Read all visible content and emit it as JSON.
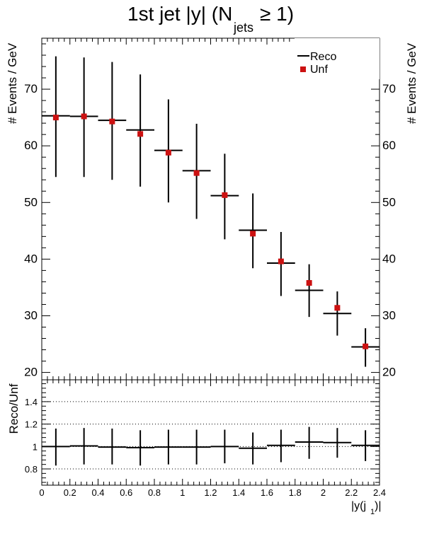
{
  "title": {
    "main": "1st jet |y| (N",
    "sub": "jets",
    "tail": " ≥ 1)"
  },
  "axis_labels": {
    "ylabel_left": "# Events / GeV",
    "ylabel_right": "# Events / GeV",
    "ratio_ylabel": "Reco/Unf",
    "xlabel_main": "|y(j",
    "xlabel_sub": "1",
    "xlabel_tail": ")|"
  },
  "legend": {
    "reco_label": "Reco",
    "unf_label": "Unf"
  },
  "colors": {
    "unf_marker": "#cc1111",
    "line": "#000000"
  },
  "chart_data": [
    {
      "type": "scatter",
      "panel": "main",
      "xlim": [
        0,
        2.4
      ],
      "ylim": [
        18.7,
        79
      ],
      "yticks": [
        20,
        30,
        40,
        50,
        60,
        70
      ],
      "ytick_labels": [
        "20",
        "30",
        "40",
        "50",
        "60",
        "70"
      ],
      "bin_edges": [
        0,
        0.2,
        0.4,
        0.6,
        0.8,
        1.0,
        1.2,
        1.4,
        1.6,
        1.8,
        2.0,
        2.2,
        2.4
      ],
      "series": [
        {
          "name": "Reco",
          "style": "horizontal bin line",
          "values": [
            65.3,
            65.2,
            64.5,
            62.8,
            59.2,
            55.6,
            51.2,
            45.1,
            39.3,
            34.5,
            30.4,
            24.5
          ]
        },
        {
          "name": "Unf",
          "style": "square marker with error bar",
          "values": [
            65.0,
            65.2,
            64.3,
            62.1,
            58.8,
            55.2,
            51.3,
            44.5,
            39.6,
            35.8,
            31.4,
            24.6
          ],
          "err_low": [
            54.5,
            54.5,
            54.0,
            52.8,
            50.0,
            47.1,
            43.5,
            38.4,
            33.5,
            29.8,
            26.5,
            21.0
          ],
          "err_high": [
            75.8,
            75.6,
            74.8,
            72.6,
            68.2,
            63.9,
            58.6,
            51.6,
            44.8,
            39.1,
            34.3,
            27.8
          ]
        }
      ]
    },
    {
      "type": "scatter",
      "panel": "ratio",
      "xlim": [
        0,
        2.4
      ],
      "ylim": [
        0.655,
        1.595
      ],
      "yticks": [
        0.8,
        1.0,
        1.2,
        1.4
      ],
      "ytick_labels": [
        "0.8",
        "1",
        "1.2",
        "1.4"
      ],
      "gridlines_y": [
        0.8,
        1.0,
        1.2,
        1.4
      ],
      "xticks": [
        0,
        0.2,
        0.4,
        0.6,
        0.8,
        1.0,
        1.2,
        1.4,
        1.6,
        1.8,
        2.0,
        2.2,
        2.4
      ],
      "xtick_labels": [
        "0",
        "0.2",
        "0.4",
        "0.6",
        "0.8",
        "1",
        "1.2",
        "1.4",
        "1.6",
        "1.8",
        "2",
        "2.2",
        "2.4"
      ],
      "bin_edges": [
        0,
        0.2,
        0.4,
        0.6,
        0.8,
        1.0,
        1.2,
        1.4,
        1.6,
        1.8,
        2.0,
        2.2,
        2.4
      ],
      "series": [
        {
          "name": "Reco/Unf",
          "values": [
            1.0,
            1.005,
            0.995,
            0.99,
            0.995,
            0.995,
            1.0,
            0.985,
            1.01,
            1.04,
            1.035,
            1.01
          ],
          "err_low": [
            0.83,
            0.84,
            0.84,
            0.83,
            0.84,
            0.84,
            0.85,
            0.84,
            0.86,
            0.89,
            0.9,
            0.87
          ],
          "err_high": [
            1.16,
            1.165,
            1.16,
            1.145,
            1.15,
            1.15,
            1.15,
            1.125,
            1.15,
            1.175,
            1.165,
            1.145
          ]
        }
      ]
    }
  ]
}
